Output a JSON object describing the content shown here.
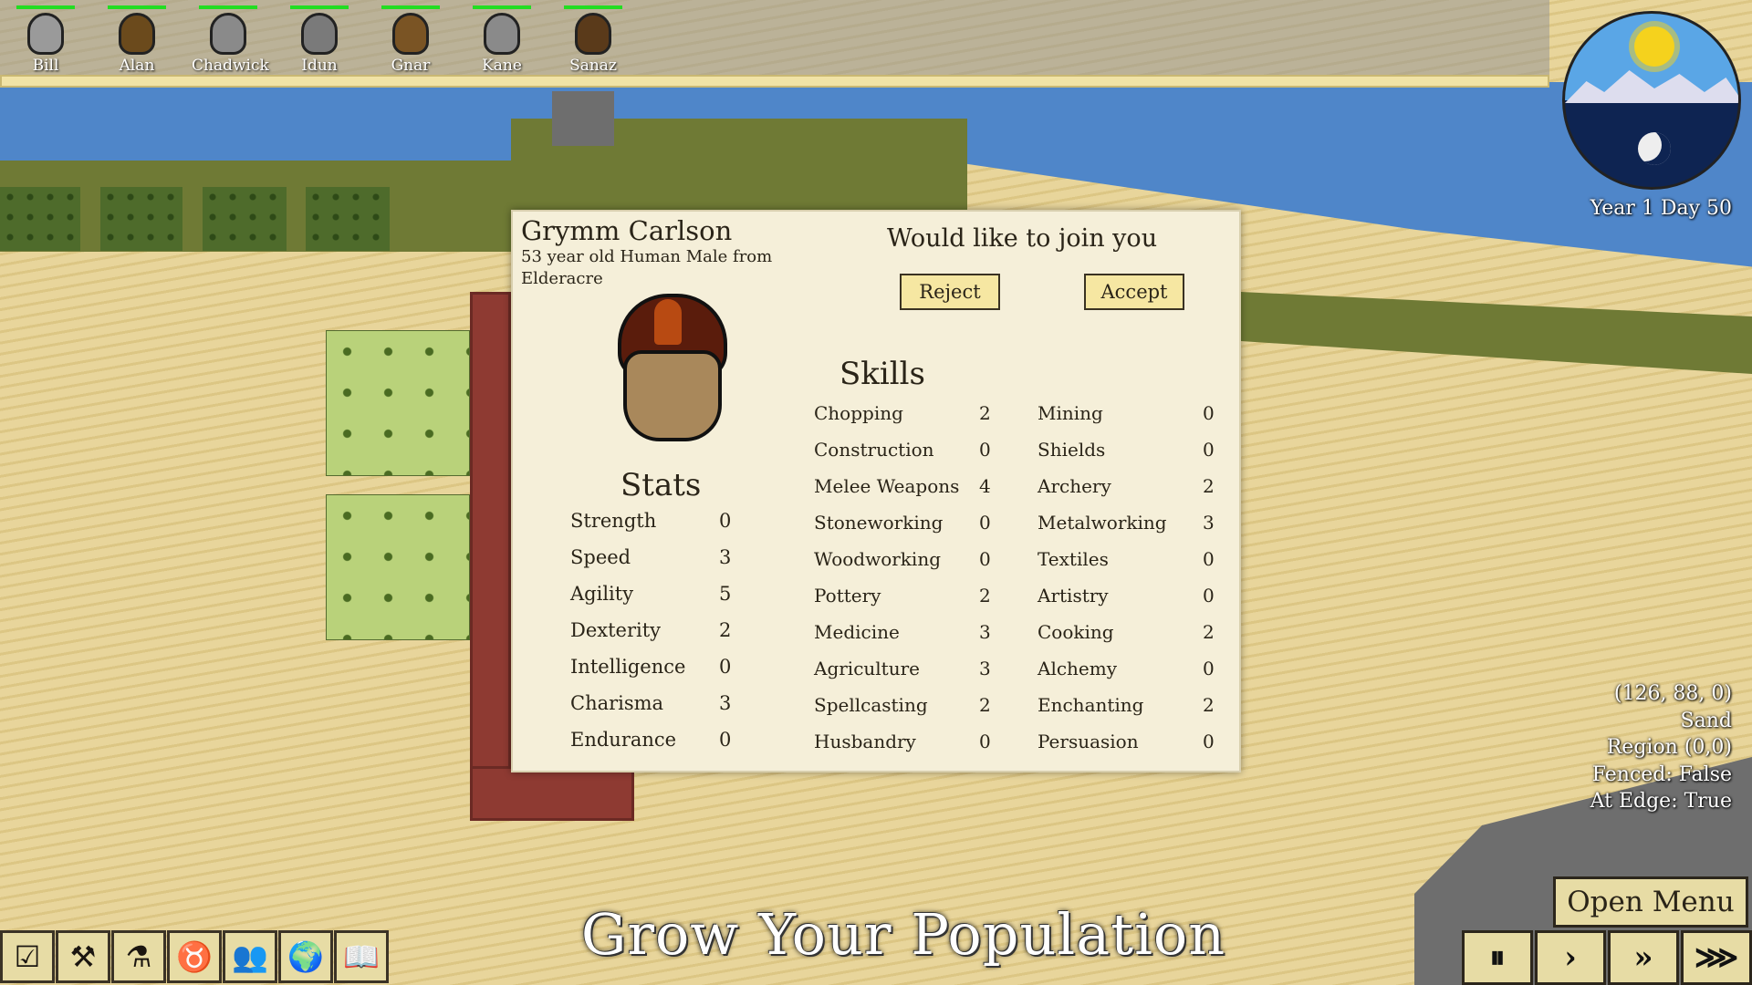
{
  "colonists": [
    {
      "name": "Bill",
      "helmet": "#9a9a9a"
    },
    {
      "name": "Alan",
      "helmet": "#6b4a1c"
    },
    {
      "name": "Chadwick",
      "helmet": "#8a8a8a"
    },
    {
      "name": "Idun",
      "helmet": "#7a7a7a"
    },
    {
      "name": "Gnar",
      "helmet": "#7a5424"
    },
    {
      "name": "Kane",
      "helmet": "#8a8a8a"
    },
    {
      "name": "Sanaz",
      "helmet": "#5a3a1a"
    }
  ],
  "clock": {
    "date": "Year 1 Day 50"
  },
  "tile_info": [
    "(126, 88, 0)",
    "Sand",
    "Region (0,0)",
    "Fenced: False",
    "At Edge: True"
  ],
  "dialog": {
    "name": "Grymm Carlson",
    "description": "53 year old Human Male from Elderacre",
    "prompt": "Would like to join you",
    "reject_label": "Reject",
    "accept_label": "Accept",
    "stats_title": "Stats",
    "stats": [
      [
        "Strength",
        "0"
      ],
      [
        "Speed",
        "3"
      ],
      [
        "Agility",
        "5"
      ],
      [
        "Dexterity",
        "2"
      ],
      [
        "Intelligence",
        "0"
      ],
      [
        "Charisma",
        "3"
      ],
      [
        "Endurance",
        "0"
      ]
    ],
    "skills_title": "Skills",
    "skills_left": [
      [
        "Chopping",
        "2"
      ],
      [
        "Construction",
        "0"
      ],
      [
        "Melee Weapons",
        "4"
      ],
      [
        "Stoneworking",
        "0"
      ],
      [
        "Woodworking",
        "0"
      ],
      [
        "Pottery",
        "2"
      ],
      [
        "Medicine",
        "3"
      ],
      [
        "Agriculture",
        "3"
      ],
      [
        "Spellcasting",
        "2"
      ],
      [
        "Husbandry",
        "0"
      ]
    ],
    "skills_right": [
      [
        "Mining",
        "0"
      ],
      [
        "Shields",
        "0"
      ],
      [
        "Archery",
        "2"
      ],
      [
        "Metalworking",
        "3"
      ],
      [
        "Textiles",
        "0"
      ],
      [
        "Artistry",
        "0"
      ],
      [
        "Cooking",
        "2"
      ],
      [
        "Alchemy",
        "0"
      ],
      [
        "Enchanting",
        "2"
      ],
      [
        "Persuasion",
        "0"
      ]
    ]
  },
  "toolbar": [
    {
      "icon": "task-list-icon",
      "glyph": "☑"
    },
    {
      "icon": "hammer-icon",
      "glyph": "⚒"
    },
    {
      "icon": "flask-icon",
      "glyph": "⚗"
    },
    {
      "icon": "cow-icon",
      "glyph": "♉"
    },
    {
      "icon": "people-icon",
      "glyph": "👥"
    },
    {
      "icon": "globe-icon",
      "glyph": "🌍"
    },
    {
      "icon": "book-icon",
      "glyph": "📖"
    }
  ],
  "open_menu_label": "Open Menu",
  "speed_buttons": [
    {
      "name": "pause",
      "glyph": "⏸"
    },
    {
      "name": "play",
      "glyph": "›"
    },
    {
      "name": "fast",
      "glyph": "»"
    },
    {
      "name": "fastest",
      "glyph": "⋙"
    }
  ],
  "caption": "Grow Your Population",
  "colors": {
    "hp": "#22dd22",
    "button": "#f6e7a2",
    "panel": "#f5efd9"
  }
}
